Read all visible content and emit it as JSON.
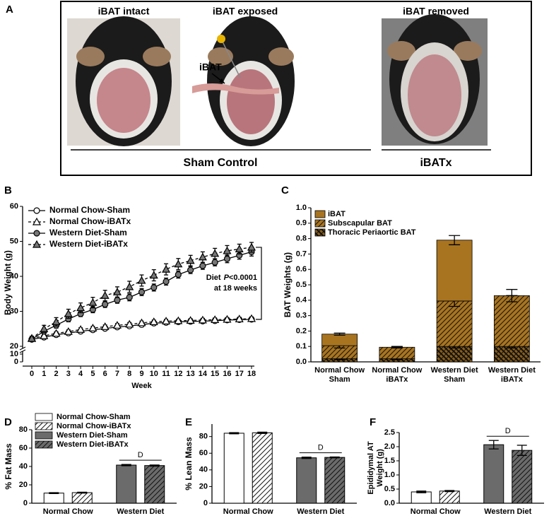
{
  "panel_a": {
    "label": "A",
    "captions": [
      "iBAT intact",
      "iBAT exposed",
      "iBAT removed"
    ],
    "callout": "iBAT",
    "groups": [
      "Sham Control",
      "iBATx"
    ]
  },
  "chart_data": [
    {
      "type": "line",
      "panel": "B",
      "xlabel": "Week",
      "ylabel": "Body Weight (g)",
      "x": [
        0,
        1,
        2,
        3,
        4,
        5,
        6,
        7,
        8,
        9,
        10,
        11,
        12,
        13,
        14,
        15,
        16,
        17,
        18
      ],
      "xlim": [
        0,
        18
      ],
      "xticks": [
        0,
        1,
        2,
        3,
        4,
        5,
        6,
        7,
        8,
        9,
        10,
        11,
        12,
        13,
        14,
        15,
        16,
        17,
        18
      ],
      "ylim": [
        0,
        60
      ],
      "yticks": [
        0,
        10,
        20,
        30,
        40,
        50,
        60
      ],
      "axis_break": true,
      "annotation": [
        "Diet",
        "P",
        "<0.0001",
        "at 18 weeks"
      ],
      "series": [
        {
          "name": "Normal Chow-Sham",
          "color": "#000000",
          "fill": "#ffffff",
          "marker": "circle",
          "dash": false,
          "values": [
            22,
            22.6,
            23.3,
            23.8,
            24.3,
            24.7,
            25.1,
            25.5,
            25.8,
            26.2,
            26.6,
            26.8,
            27.0,
            27.1,
            27.2,
            27.3,
            27.5,
            27.6,
            27.7
          ],
          "errors": [
            0.5,
            0.5,
            0.5,
            0.5,
            0.5,
            0.5,
            0.5,
            0.5,
            0.5,
            0.5,
            0.5,
            0.5,
            0.5,
            0.5,
            0.5,
            0.5,
            0.5,
            0.5,
            0.5
          ]
        },
        {
          "name": "Normal Chow-iBATx",
          "color": "#000000",
          "fill": "#ffffff",
          "marker": "triangle",
          "dash": true,
          "values": [
            22.3,
            23.0,
            23.7,
            24.2,
            24.8,
            25.2,
            25.6,
            26.0,
            26.3,
            26.7,
            27.0,
            27.2,
            27.3,
            27.4,
            27.5,
            27.6,
            27.7,
            27.8,
            27.9
          ],
          "errors": [
            0.5,
            0.5,
            0.5,
            0.5,
            0.5,
            0.5,
            0.5,
            0.5,
            0.5,
            0.5,
            0.5,
            0.5,
            0.5,
            0.5,
            0.5,
            0.5,
            0.5,
            0.5,
            0.5
          ]
        },
        {
          "name": "Western Diet-Sham",
          "color": "#000000",
          "fill": "#777777",
          "marker": "circle",
          "dash": false,
          "values": [
            22,
            24.3,
            26,
            27.8,
            29.3,
            30.5,
            32.0,
            33.2,
            34.0,
            35.5,
            36.8,
            38.5,
            40.5,
            41.8,
            43.0,
            44.0,
            45.0,
            46.0,
            47.0
          ],
          "errors": [
            0.6,
            0.7,
            0.8,
            0.8,
            0.8,
            0.9,
            0.9,
            0.9,
            1,
            1,
            1,
            1,
            1,
            1,
            1,
            1,
            1.1,
            1.1,
            1.2
          ]
        },
        {
          "name": "Western Diet-iBATx",
          "color": "#000000",
          "fill": "#777777",
          "marker": "triangle",
          "dash": true,
          "values": [
            22.2,
            25,
            27,
            29.3,
            31,
            32.5,
            34.5,
            35.5,
            37,
            38.8,
            40.3,
            42,
            43.5,
            44.5,
            45.5,
            46.5,
            47.3,
            47.8,
            48.3
          ],
          "errors": [
            0.7,
            1,
            1.2,
            1.3,
            1.4,
            1.5,
            1.5,
            1.5,
            1.6,
            1.6,
            1.6,
            1.6,
            1.6,
            1.5,
            1.5,
            1.5,
            1.5,
            1.4,
            1.4
          ]
        }
      ]
    },
    {
      "type": "bar",
      "stacked": true,
      "panel": "C",
      "ylabel": "BAT Weights (g)",
      "categories": [
        [
          "Normal Chow",
          "Sham"
        ],
        [
          "Normal Chow",
          "iBATx"
        ],
        [
          "Western Diet",
          "Sham"
        ],
        [
          "Western Diet",
          "iBATx"
        ]
      ],
      "ylim": [
        0,
        1
      ],
      "yticks": [
        {
          "value": 0,
          "label": "0.0"
        },
        0.1,
        0.2,
        0.3,
        0.4,
        0.5,
        0.6,
        0.7,
        0.8,
        0.9,
        {
          "value": 1,
          "label": "1.0"
        }
      ],
      "series": [
        {
          "name": "iBAT",
          "color": "#a8741f",
          "values": [
            0.075,
            0,
            0.395,
            0
          ],
          "errors": [
            0.007,
            0,
            0.03,
            0
          ]
        },
        {
          "name": "Subscapular BAT",
          "color": "#a8741f",
          "pattern": "hatch",
          "values": [
            0.085,
            0.075,
            0.295,
            0.33
          ],
          "errors": [
            0.015,
            0.005,
            0.035,
            0.04
          ]
        },
        {
          "name": "Thoracic Periaortic BAT",
          "color": "#8a5e1a",
          "pattern": "cross",
          "values": [
            0.02,
            0.02,
            0.1,
            0.1
          ],
          "errors": [
            0.005,
            0.005,
            0.01,
            0.01
          ]
        }
      ]
    },
    {
      "type": "bar",
      "panel": "D",
      "ylabel": "% Fat Mass",
      "categories": [
        "Normal Chow",
        "Western Diet"
      ],
      "ylim": [
        0,
        80
      ],
      "yticks": [
        0,
        20,
        40,
        60,
        80
      ],
      "annotation": {
        "text": "D",
        "category": "Western Diet"
      },
      "series": [
        {
          "name": "Normal Chow-Sham",
          "color": "#ffffff",
          "values": [
            11,
            null
          ],
          "errors": [
            0.5,
            null
          ]
        },
        {
          "name": "Normal Chow-iBATx",
          "color": "#ffffff",
          "pattern": "hatch",
          "values": [
            11.5,
            null
          ],
          "errors": [
            0.5,
            null
          ]
        },
        {
          "name": "Western Diet-Sham",
          "color": "#6b6b6b",
          "values": [
            null,
            41.5
          ],
          "errors": [
            null,
            0.7
          ]
        },
        {
          "name": "Western Diet-iBATx",
          "color": "#6b6b6b",
          "pattern": "hatch",
          "values": [
            null,
            41
          ],
          "errors": [
            null,
            0.6
          ]
        }
      ]
    },
    {
      "type": "bar",
      "panel": "E",
      "ylabel": "% Lean Mass",
      "categories": [
        "Normal Chow",
        "Western Diet"
      ],
      "ylim": [
        0,
        95
      ],
      "yticks": [
        0,
        20,
        40,
        60,
        80
      ],
      "annotation": {
        "text": "D",
        "category": "Western Diet"
      },
      "series": [
        {
          "color": "#ffffff",
          "values": [
            84,
            null
          ],
          "errors": [
            0.7,
            null
          ]
        },
        {
          "color": "#ffffff",
          "pattern": "hatch",
          "values": [
            84.5,
            null
          ],
          "errors": [
            0.8,
            null
          ]
        },
        {
          "color": "#6b6b6b",
          "values": [
            null,
            54.5
          ],
          "errors": [
            null,
            0.8
          ]
        },
        {
          "color": "#6b6b6b",
          "pattern": "hatch",
          "values": [
            null,
            55
          ],
          "errors": [
            null,
            0.5
          ]
        }
      ]
    },
    {
      "type": "bar",
      "panel": "F",
      "ylabel": [
        "Epididymal AT",
        "Weight (g)"
      ],
      "categories": [
        "Normal Chow",
        "Western Diet"
      ],
      "ylim": [
        0,
        2.5
      ],
      "yticks": [
        {
          "value": 0,
          "label": "0.0"
        },
        0.5,
        {
          "value": 1,
          "label": "1.0"
        },
        1.5,
        {
          "value": 2,
          "label": "2.0"
        },
        2.5
      ],
      "annotation": {
        "text": "D",
        "category": "Western Diet"
      },
      "series": [
        {
          "color": "#ffffff",
          "values": [
            0.4,
            null
          ],
          "errors": [
            0.03,
            null
          ]
        },
        {
          "color": "#ffffff",
          "pattern": "hatch",
          "values": [
            0.43,
            null
          ],
          "errors": [
            0.02,
            null
          ]
        },
        {
          "color": "#6b6b6b",
          "values": [
            null,
            2.07
          ],
          "errors": [
            null,
            0.15
          ]
        },
        {
          "color": "#6b6b6b",
          "pattern": "hatch",
          "values": [
            null,
            1.87
          ],
          "errors": [
            null,
            0.18
          ]
        }
      ]
    }
  ]
}
